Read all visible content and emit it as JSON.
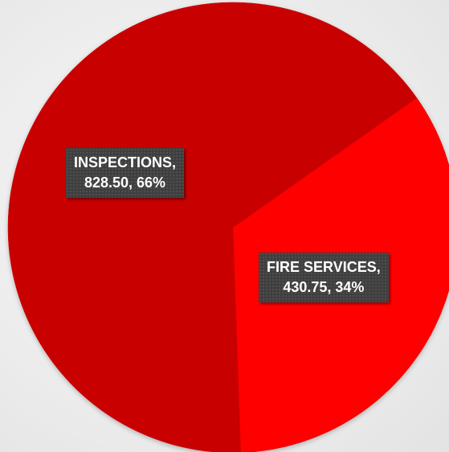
{
  "chart_data": {
    "type": "pie",
    "slices": [
      {
        "label": "INSPECTIONS",
        "value": 828.5,
        "percent": "66%",
        "display_value": "828.50",
        "color": "#c80000"
      },
      {
        "label": "FIRE SERVICES",
        "value": 430.75,
        "percent": "34%",
        "display_value": "430.75",
        "color": "#ff0000"
      }
    ],
    "data_labels": [
      {
        "line1": "INSPECTIONS,",
        "line2": "828.50, 66%"
      },
      {
        "line1": "FIRE SERVICES,",
        "line2": "430.75, 34%"
      }
    ],
    "legend": "none"
  }
}
